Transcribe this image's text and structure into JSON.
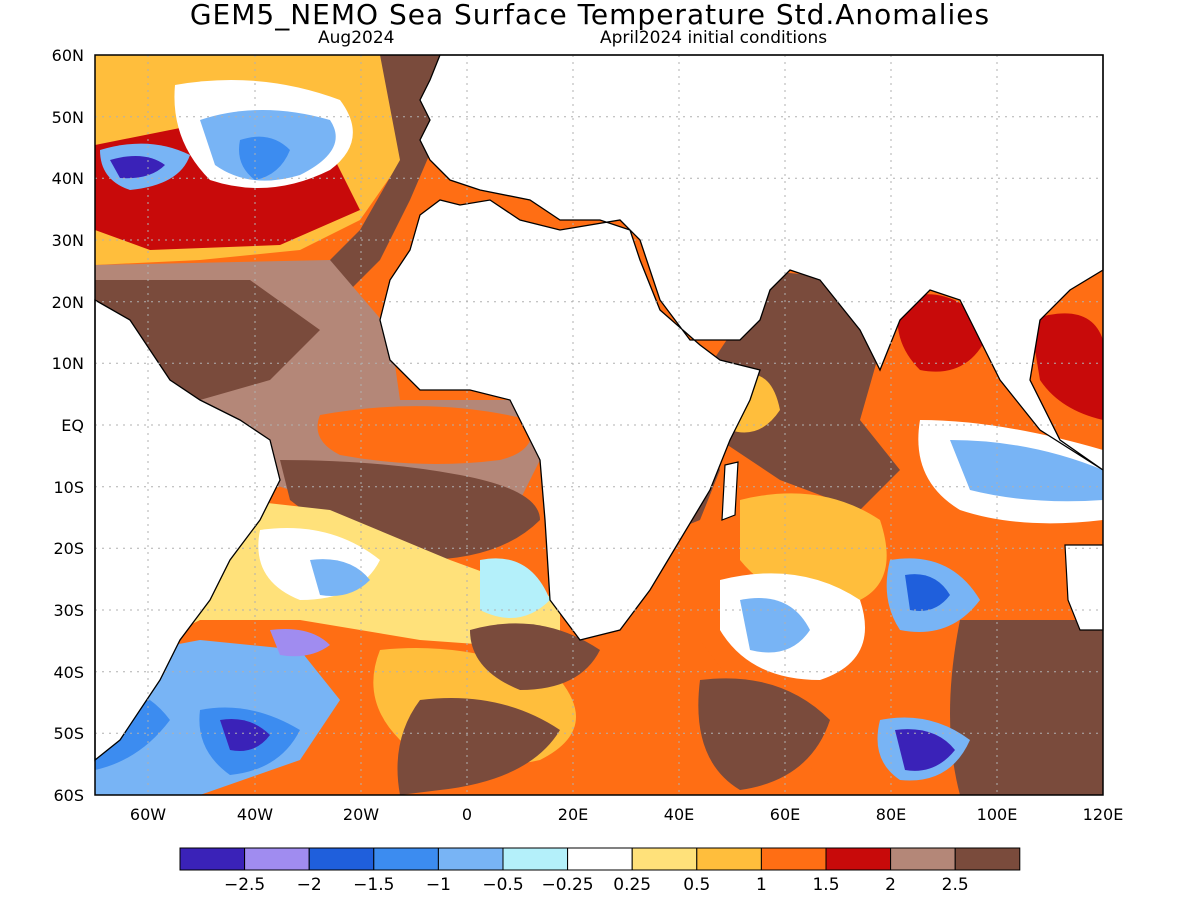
{
  "title": "GEM5_NEMO Sea Surface Temperature Std.Anomalies",
  "subtitle_left": "Aug2024",
  "subtitle_right": "April2024 initial conditions",
  "lat_labels": [
    "60N",
    "50N",
    "40N",
    "30N",
    "20N",
    "10N",
    "EQ",
    "10S",
    "20S",
    "30S",
    "40S",
    "50S",
    "60S"
  ],
  "lon_labels": [
    "60W",
    "40W",
    "20W",
    "0",
    "20E",
    "40E",
    "60E",
    "80E",
    "100E",
    "120E"
  ],
  "colorbar": {
    "colors": [
      "#3a22b8",
      "#a08cf0",
      "#1f5fdc",
      "#3c8cf0",
      "#78b4f5",
      "#b4f0fa",
      "#ffffff",
      "#ffe17a",
      "#ffbe3c",
      "#ff6e14",
      "#c80a0a",
      "#b48778",
      "#7a4b3c"
    ],
    "labels": [
      "−2.5",
      "−2",
      "−1.5",
      "−1",
      "−0.5",
      "−0.25",
      "0.25",
      "0.5",
      "1",
      "1.5",
      "2",
      "2.5"
    ]
  }
}
